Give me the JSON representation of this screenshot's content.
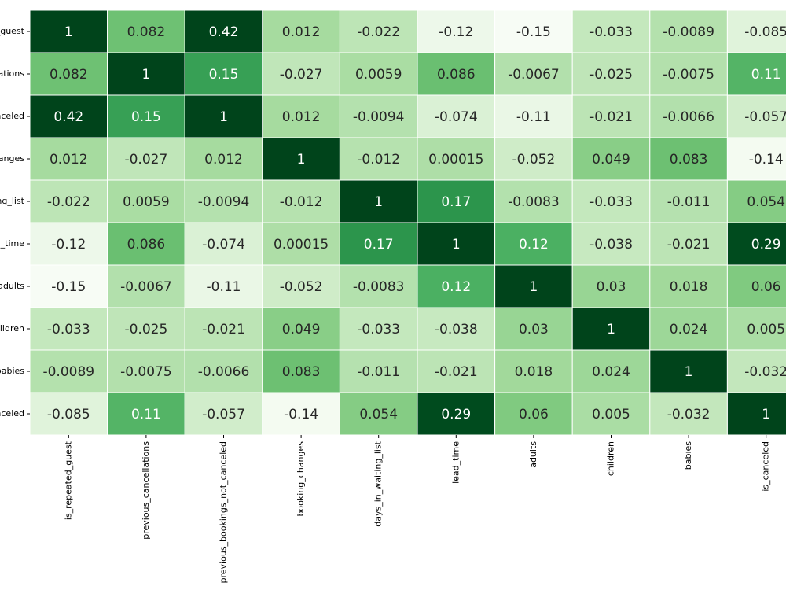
{
  "chart_data": {
    "type": "heatmap",
    "categories": [
      "is_repeated_guest",
      "previous_cancellations",
      "previous_bookings_not_canceled",
      "booking_changes",
      "days_in_waiting_list",
      "lead_time",
      "adults",
      "children",
      "babies",
      "is_canceled"
    ],
    "values": [
      [
        1,
        0.082,
        0.42,
        0.012,
        -0.022,
        -0.12,
        -0.15,
        -0.033,
        -0.0089,
        -0.085
      ],
      [
        0.082,
        1,
        0.15,
        -0.027,
        0.0059,
        0.086,
        -0.0067,
        -0.025,
        -0.0075,
        0.11
      ],
      [
        0.42,
        0.15,
        1,
        0.012,
        -0.0094,
        -0.074,
        -0.11,
        -0.021,
        -0.0066,
        -0.057
      ],
      [
        0.012,
        -0.027,
        0.012,
        1,
        -0.012,
        0.00015,
        -0.052,
        0.049,
        0.083,
        -0.14
      ],
      [
        -0.022,
        0.0059,
        -0.0094,
        -0.012,
        1,
        0.17,
        -0.0083,
        -0.033,
        -0.011,
        0.054
      ],
      [
        -0.12,
        0.086,
        -0.074,
        0.00015,
        0.17,
        1,
        0.12,
        -0.038,
        -0.021,
        0.29
      ],
      [
        -0.15,
        -0.0067,
        -0.11,
        -0.052,
        -0.0083,
        0.12,
        1,
        0.03,
        0.018,
        0.06
      ],
      [
        -0.033,
        -0.025,
        -0.021,
        0.049,
        -0.033,
        -0.038,
        0.03,
        1,
        0.024,
        0.005
      ],
      [
        -0.0089,
        -0.0075,
        -0.0066,
        0.083,
        -0.011,
        -0.021,
        0.018,
        0.024,
        1,
        -0.032
      ],
      [
        -0.085,
        0.11,
        -0.057,
        -0.14,
        0.054,
        0.29,
        0.06,
        0.005,
        -0.032,
        1
      ]
    ],
    "zlim": [
      -0.15,
      0.3
    ],
    "colorscale": [
      "#f7fcf5",
      "#e5f5e0",
      "#c7e9c0",
      "#a1d99b",
      "#74c476",
      "#41ab5d",
      "#238b45",
      "#006d2c",
      "#00441b"
    ]
  }
}
